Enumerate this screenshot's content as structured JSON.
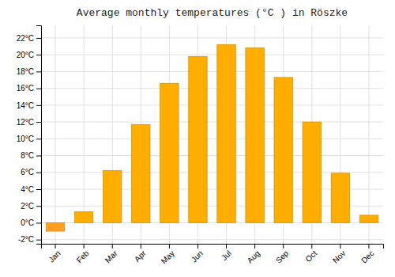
{
  "chart_data": {
    "type": "bar",
    "title": "Average monthly temperatures (°C ) in Röszke",
    "categories": [
      "Jan",
      "Feb",
      "Mar",
      "Apr",
      "May",
      "Jun",
      "Jul",
      "Aug",
      "Sep",
      "Oct",
      "Nov",
      "Dec"
    ],
    "values": [
      -1.0,
      1.3,
      6.2,
      11.7,
      16.6,
      19.8,
      21.2,
      20.8,
      17.3,
      12.0,
      5.9,
      0.9
    ],
    "colors": [
      "#FFA020",
      "#FFAD00",
      "#FFAD00",
      "#FFAD00",
      "#FFAD00",
      "#FFAD00",
      "#FFAD00",
      "#FFAD00",
      "#FFAD00",
      "#FFAD00",
      "#FFAD00",
      "#FFAD00"
    ],
    "ylim": [
      -2.5,
      23.5
    ],
    "yticks": [
      {
        "value": -2,
        "label": "-2°C"
      },
      {
        "value": 0,
        "label": "0°C"
      },
      {
        "value": 2,
        "label": "2°C"
      },
      {
        "value": 4,
        "label": "4°C"
      },
      {
        "value": 6,
        "label": "6°C"
      },
      {
        "value": 8,
        "label": "8°C"
      },
      {
        "value": 10,
        "label": "10°C"
      },
      {
        "value": 12,
        "label": "12°C"
      },
      {
        "value": 14,
        "label": "14°C"
      },
      {
        "value": 16,
        "label": "16°C"
      },
      {
        "value": 18,
        "label": "18°C"
      },
      {
        "value": 20,
        "label": "20°C"
      },
      {
        "value": 22,
        "label": "22°C"
      }
    ],
    "grid": true
  }
}
